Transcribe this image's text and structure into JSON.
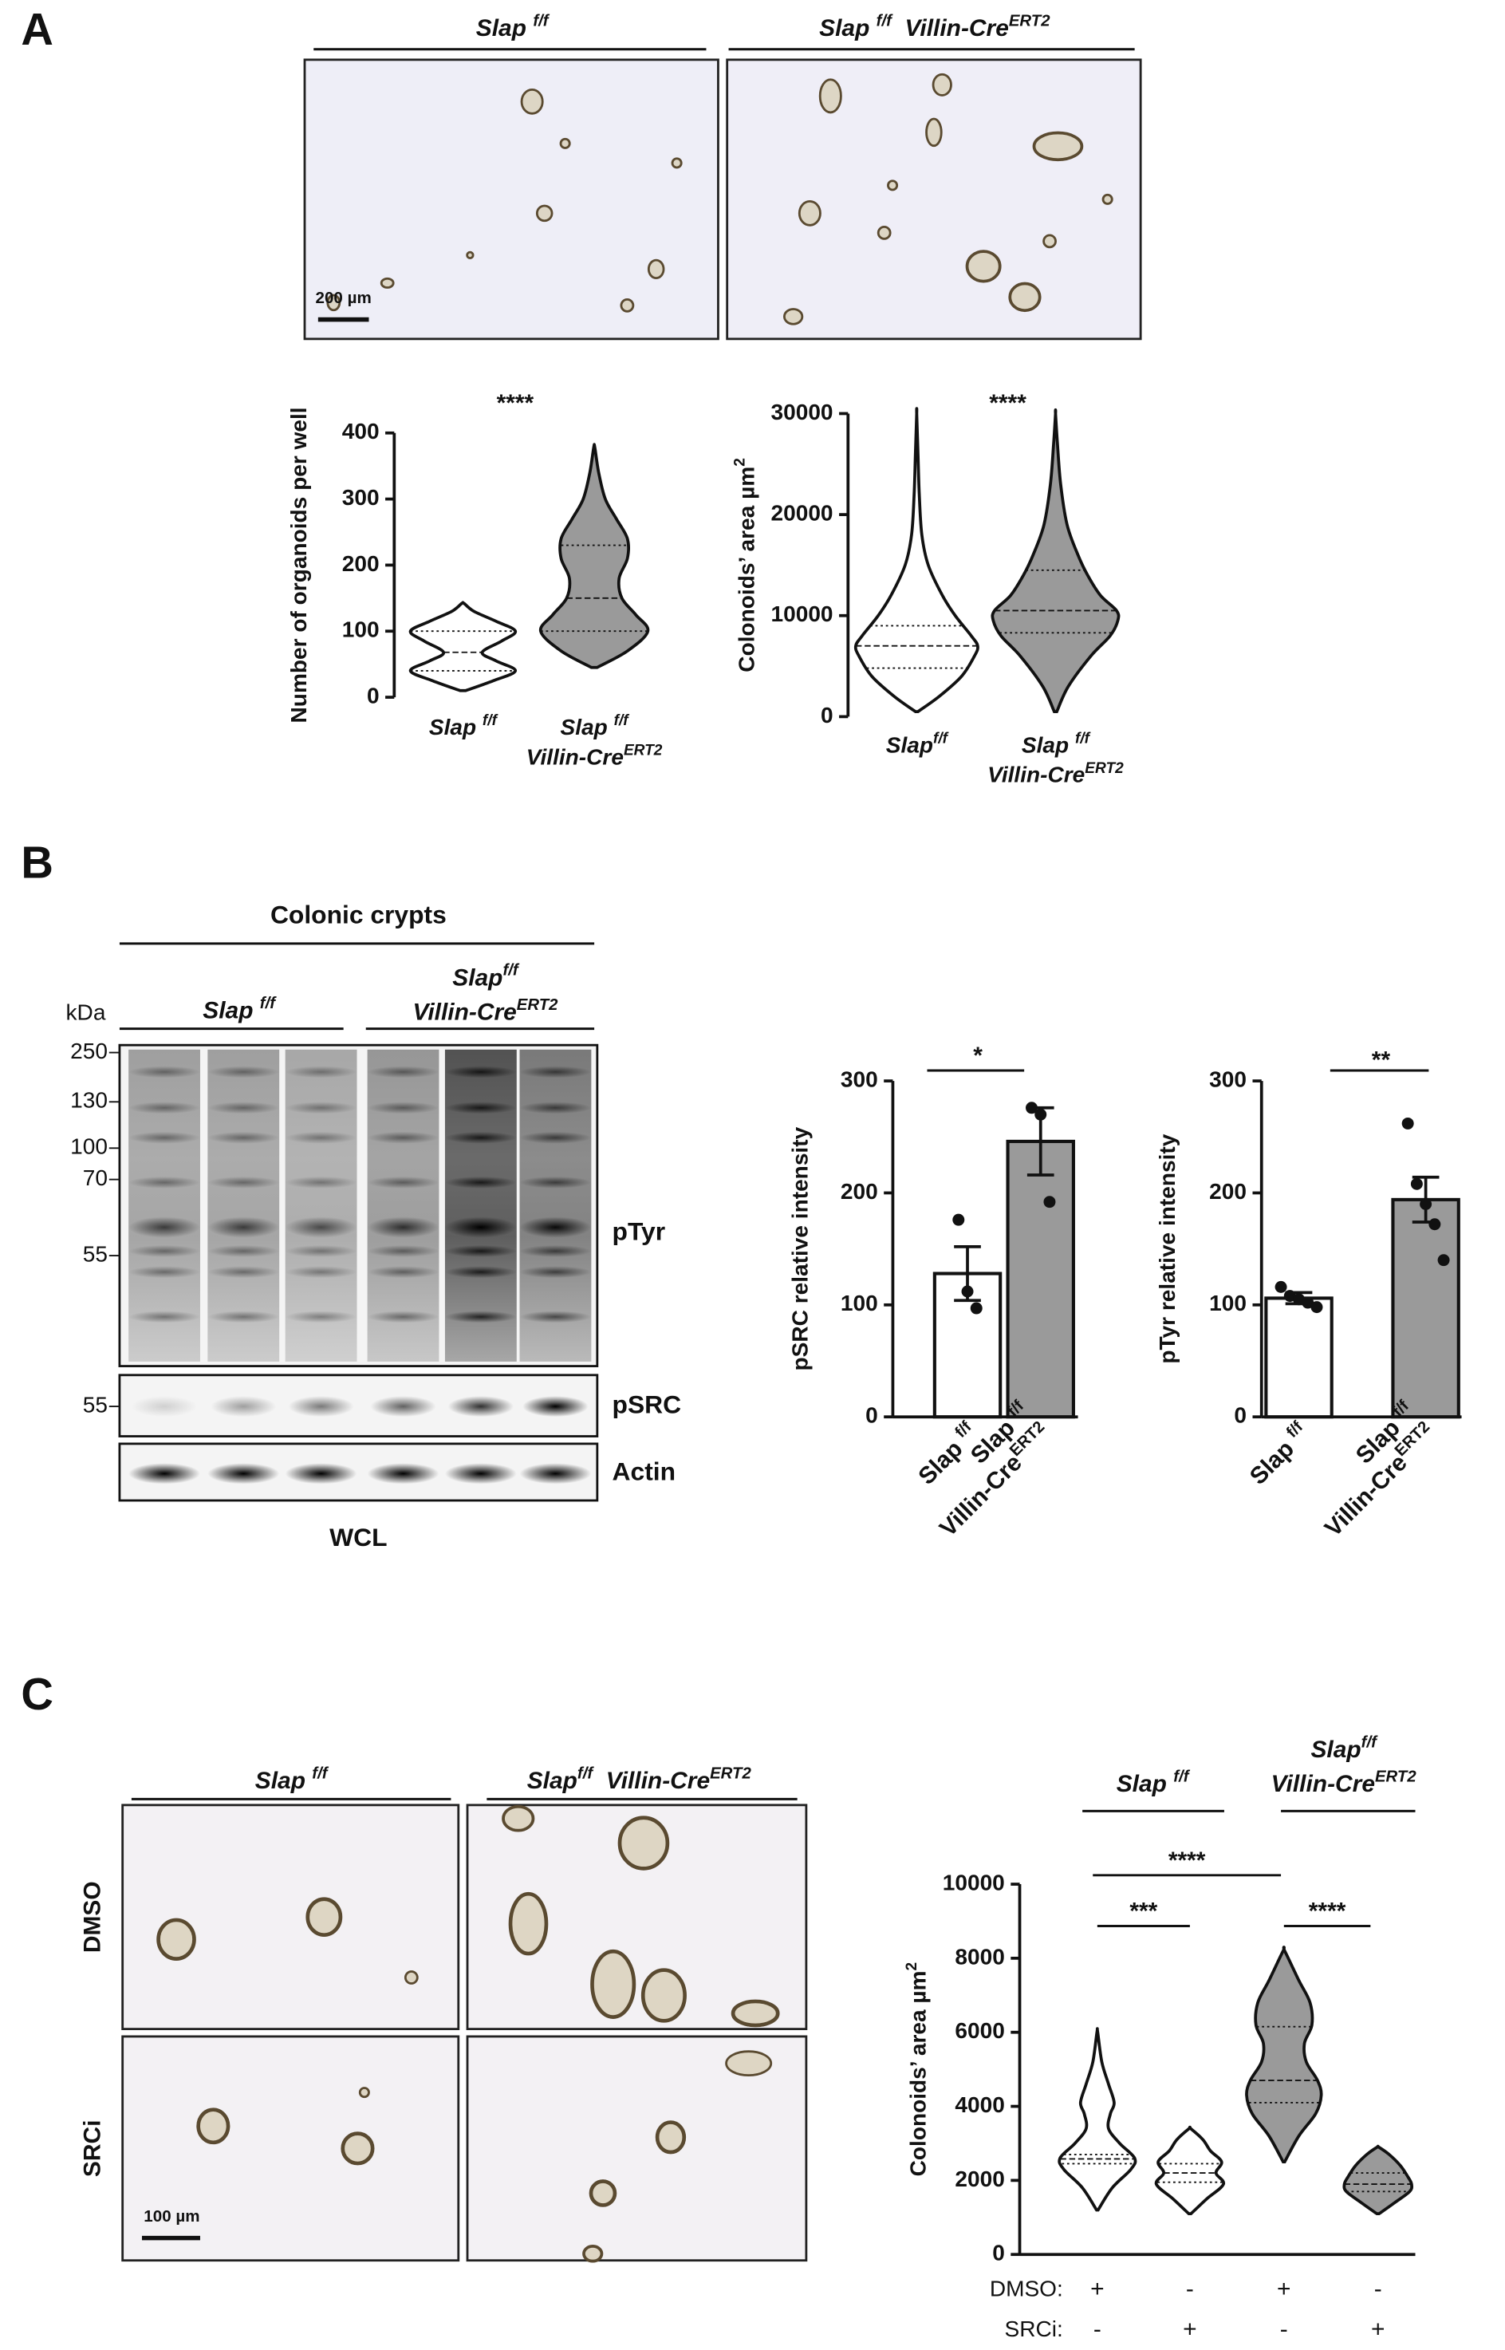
{
  "figure": {
    "panel_labels": [
      "A",
      "B",
      "C"
    ],
    "panel_a": {
      "headers": [
        [
          {
            "t": "Slap "
          },
          {
            "sup": "f/f"
          }
        ],
        [
          {
            "t": "Slap "
          },
          {
            "sup": "f/f"
          },
          {
            "t": "  Villin-Cre"
          },
          {
            "sup": "ERT2"
          }
        ]
      ],
      "scale_bar": "200 µm"
    },
    "panel_b": {
      "title": "Colonic crypts",
      "unit": "kDa",
      "markers": [
        250,
        130,
        100,
        70,
        55,
        55
      ],
      "headers": [
        [
          [
            {
              "t": "Slap "
            },
            {
              "sup": "f/f"
            }
          ]
        ],
        [
          [
            {
              "t": "Slap"
            },
            {
              "sup": "f/f"
            }
          ],
          [
            {
              "t": "Villin-Cre"
            },
            {
              "sup": "ERT2"
            }
          ]
        ]
      ],
      "blots": [
        "pTyr",
        "pSRC",
        "Actin"
      ],
      "lysate": "WCL"
    },
    "panel_c": {
      "headers": [
        [
          {
            "t": "Slap "
          },
          {
            "sup": "f/f"
          }
        ],
        [
          {
            "t": "Slap"
          },
          {
            "sup": "f/f"
          },
          {
            "t": "  Villin-Cre"
          },
          {
            "sup": "ERT2"
          }
        ]
      ],
      "rows": [
        "DMSO",
        "SRCi"
      ],
      "scale_bar": "100 µm"
    }
  },
  "chart_data": [
    {
      "type": "violin",
      "ylabel": [
        {
          "t": "Number of organoids per well"
        }
      ],
      "ylim": [
        0,
        400
      ],
      "yticks": [
        0,
        100,
        200,
        300,
        400
      ],
      "categories": [
        [
          [
            {
              "t": "Slap "
            },
            {
              "sup": "f/f"
            }
          ]
        ],
        [
          [
            {
              "t": "Slap "
            },
            {
              "sup": "f/f"
            }
          ],
          [
            {
              "t": "Villin-Cre"
            },
            {
              "sup": "ERT2"
            }
          ]
        ]
      ],
      "violins": [
        {
          "color": "#ffffff",
          "q1": 40,
          "median": 68,
          "q3": 100,
          "density": {
            "y": [
              10,
              25,
              40,
              55,
              68,
              85,
              100,
              115,
              130,
              142
            ],
            "w": [
              0.05,
              0.55,
              0.95,
              0.6,
              0.35,
              0.7,
              0.95,
              0.6,
              0.2,
              0.02
            ]
          }
        },
        {
          "color": "#9a9a9a",
          "q1": 100,
          "median": 150,
          "q3": 230,
          "density": {
            "y": [
              45,
              70,
              100,
              125,
              150,
              180,
              210,
              240,
              270,
              300,
              340,
              378
            ],
            "w": [
              0.05,
              0.6,
              0.97,
              0.75,
              0.5,
              0.45,
              0.6,
              0.6,
              0.4,
              0.2,
              0.08,
              0.01
            ]
          }
        }
      ],
      "annotations": [
        "****"
      ]
    },
    {
      "type": "violin",
      "ylabel": [
        {
          "t": "Colonoids’ area µm"
        },
        {
          "sup": "2"
        }
      ],
      "ylim": [
        0,
        30000
      ],
      "yticks": [
        0,
        10000,
        20000,
        30000
      ],
      "categories": [
        [
          [
            {
              "t": "Slap"
            },
            {
              "sup": "f/f"
            }
          ]
        ],
        [
          [
            {
              "t": "Slap "
            },
            {
              "sup": "f/f"
            }
          ],
          [
            {
              "t": "Villin-Cre"
            },
            {
              "sup": "ERT2"
            }
          ]
        ]
      ],
      "violins": [
        {
          "color": "#ffffff",
          "q1": 4800,
          "median": 7000,
          "q3": 9000,
          "density": {
            "y": [
              500,
              2000,
              4000,
              6000,
              7000,
              8000,
              10000,
              12000,
              15000,
              18000,
              22000,
              26000,
              30000
            ],
            "w": [
              0.02,
              0.35,
              0.7,
              0.9,
              0.95,
              0.85,
              0.6,
              0.4,
              0.18,
              0.08,
              0.04,
              0.02,
              0.0
            ]
          }
        },
        {
          "color": "#9a9a9a",
          "q1": 8300,
          "median": 10500,
          "q3": 14500,
          "density": {
            "y": [
              500,
              3000,
              6000,
              8000,
              9500,
              10500,
              12000,
              14000,
              16000,
              19000,
              23000,
              27000,
              30000
            ],
            "w": [
              0.02,
              0.2,
              0.55,
              0.85,
              0.97,
              0.95,
              0.7,
              0.5,
              0.35,
              0.18,
              0.08,
              0.03,
              0.0
            ]
          }
        }
      ],
      "annotations": [
        "****"
      ]
    },
    {
      "type": "bar",
      "ylabel": [
        {
          "t": "pSRC relative intensity"
        }
      ],
      "ylim": [
        0,
        300
      ],
      "yticks": [
        0,
        100,
        200,
        300
      ],
      "categories": [
        [
          [
            {
              "t": "Slap "
            },
            {
              "sup": "f/f"
            }
          ]
        ],
        [
          [
            {
              "t": "Slap "
            },
            {
              "sup": "f/f"
            }
          ],
          [
            {
              "t": "Villin-Cre"
            },
            {
              "sup": "ERT2"
            }
          ]
        ]
      ],
      "values": [
        128,
        246
      ],
      "errors": [
        24,
        30
      ],
      "points": [
        [
          176,
          112,
          97
        ],
        [
          276,
          270,
          192
        ]
      ],
      "colors": [
        "#ffffff",
        "#9a9a9a"
      ],
      "annotations": [
        "*"
      ]
    },
    {
      "type": "bar",
      "ylabel": [
        {
          "t": "pTyr relative intensity"
        }
      ],
      "ylim": [
        0,
        300
      ],
      "yticks": [
        0,
        100,
        200,
        300
      ],
      "categories": [
        [
          [
            {
              "t": "Slap "
            },
            {
              "sup": "f/f"
            }
          ]
        ],
        [
          [
            {
              "t": "Slap "
            },
            {
              "sup": "f/f"
            }
          ],
          [
            {
              "t": "Villin-Cre"
            },
            {
              "sup": "ERT2"
            }
          ]
        ]
      ],
      "values": [
        106,
        194
      ],
      "errors": [
        5,
        20
      ],
      "points": [
        [
          116,
          108,
          105,
          102,
          98
        ],
        [
          262,
          208,
          190,
          172,
          140
        ]
      ],
      "colors": [
        "#ffffff",
        "#9a9a9a"
      ],
      "annotations": [
        "**"
      ]
    },
    {
      "type": "violin",
      "ylabel": [
        {
          "t": "Colonoids’ area µm"
        },
        {
          "sup": "2"
        }
      ],
      "ylim": [
        0,
        10000
      ],
      "yticks": [
        0,
        2000,
        4000,
        6000,
        8000,
        10000
      ],
      "groups": [
        [
          [
            {
              "t": "Slap "
            },
            {
              "sup": "f/f"
            }
          ]
        ],
        [
          [
            {
              "t": "Slap"
            },
            {
              "sup": "f/f"
            }
          ],
          [
            {
              "t": "Villin-Cre"
            },
            {
              "sup": "ERT2"
            }
          ]
        ]
      ],
      "conditions": [
        {
          "name": "DMSO:",
          "signs": [
            "+",
            "-",
            "+",
            "-"
          ]
        },
        {
          "name": "SRCi:",
          "signs": [
            "-",
            "+",
            "-",
            "+"
          ]
        }
      ],
      "violins": [
        {
          "color": "#ffffff",
          "q1": 2450,
          "median": 2580,
          "q3": 2700,
          "density": {
            "y": [
              1200,
              1800,
              2300,
              2600,
              3000,
              3400,
              3800,
              4100,
              4600,
              5200,
              6000
            ],
            "w": [
              0.02,
              0.4,
              0.9,
              1.0,
              0.6,
              0.3,
              0.35,
              0.45,
              0.3,
              0.12,
              0.01
            ]
          }
        },
        {
          "color": "#ffffff",
          "q1": 1950,
          "median": 2200,
          "q3": 2450,
          "density": {
            "y": [
              1100,
              1500,
              1900,
              2200,
              2500,
              2800,
              3100,
              3400
            ],
            "w": [
              0.03,
              0.45,
              0.9,
              0.7,
              0.85,
              0.55,
              0.35,
              0.02
            ]
          }
        },
        {
          "color": "#9a9a9a",
          "q1": 4100,
          "median": 4700,
          "q3": 6150,
          "density": {
            "y": [
              2500,
              3200,
              3800,
              4300,
              4700,
              5200,
              5700,
              6200,
              6800,
              7400,
              8200
            ],
            "w": [
              0.02,
              0.4,
              0.85,
              1.0,
              0.9,
              0.6,
              0.55,
              0.75,
              0.7,
              0.4,
              0.02
            ]
          }
        },
        {
          "color": "#9a9a9a",
          "q1": 1700,
          "median": 1900,
          "q3": 2200,
          "density": {
            "y": [
              1100,
              1400,
              1700,
              1900,
              2100,
              2400,
              2700,
              2900
            ],
            "w": [
              0.03,
              0.45,
              0.85,
              0.9,
              0.8,
              0.6,
              0.3,
              0.02
            ]
          }
        }
      ],
      "annotations": [
        "****",
        "***",
        "****"
      ]
    }
  ]
}
